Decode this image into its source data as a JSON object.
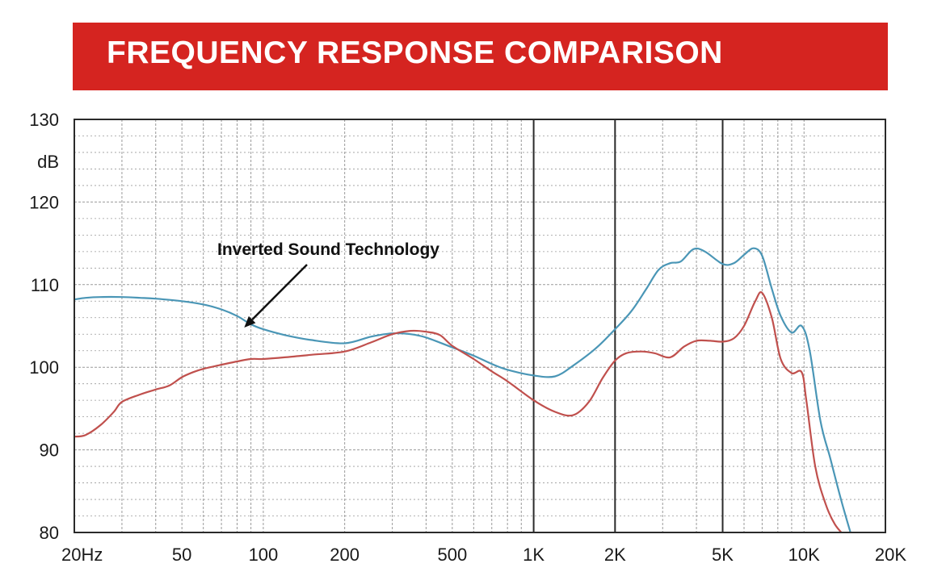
{
  "colors": {
    "banner": "#d52420",
    "blue": "#4a96b6",
    "red": "#c0504d",
    "grid": "#9a9a9a",
    "major": "#2a2a2a"
  },
  "chart_data": {
    "type": "line",
    "title": "FREQUENCY RESPONSE COMPARISON",
    "xscale": "log",
    "xlim": [
      20,
      20000
    ],
    "ylim": [
      80,
      130
    ],
    "ylabel": "dB",
    "xticks": [
      {
        "v": 20,
        "label": "20Hz"
      },
      {
        "v": 50,
        "label": "50"
      },
      {
        "v": 100,
        "label": "100"
      },
      {
        "v": 200,
        "label": "200"
      },
      {
        "v": 500,
        "label": "500"
      },
      {
        "v": 1000,
        "label": "1K"
      },
      {
        "v": 2000,
        "label": "2K"
      },
      {
        "v": 5000,
        "label": "5K"
      },
      {
        "v": 10000,
        "label": "10K"
      },
      {
        "v": 20000,
        "label": "20K"
      }
    ],
    "yticks": [
      {
        "v": 80,
        "label": "80"
      },
      {
        "v": 90,
        "label": "90"
      },
      {
        "v": 100,
        "label": "100"
      },
      {
        "v": 110,
        "label": "110"
      },
      {
        "v": 120,
        "label": "120"
      },
      {
        "v": 130,
        "label": "130"
      }
    ],
    "major_vlines": [
      1000,
      2000,
      5000
    ],
    "grid": true,
    "annotation": {
      "text": "Inverted Sound Technology",
      "x": 85,
      "y": 104.8
    },
    "series": [
      {
        "color": "blue",
        "x": [
          20,
          22,
          25,
          30,
          35,
          40,
          50,
          60,
          70,
          80,
          90,
          100,
          120,
          150,
          200,
          250,
          300,
          350,
          400,
          500,
          600,
          700,
          800,
          1000,
          1200,
          1400,
          1700,
          2000,
          2300,
          2600,
          2900,
          3200,
          3500,
          3900,
          4300,
          5000,
          5500,
          6000,
          6500,
          7000,
          7600,
          8200,
          9000,
          9800,
          10500,
          11500,
          12500,
          13700,
          15000
        ],
        "y": [
          108.2,
          108.4,
          108.5,
          108.5,
          108.4,
          108.3,
          108.0,
          107.6,
          107.0,
          106.2,
          105.2,
          104.6,
          103.9,
          103.3,
          102.9,
          103.7,
          104.1,
          104.0,
          103.6,
          102.4,
          101.4,
          100.4,
          99.7,
          99.0,
          98.9,
          100.2,
          102.3,
          104.6,
          106.8,
          109.4,
          111.8,
          112.6,
          112.8,
          114.3,
          114.0,
          112.5,
          112.6,
          113.6,
          114.4,
          113.5,
          109.5,
          106.2,
          104.2,
          105.0,
          102.0,
          93.5,
          89.0,
          84.0,
          79.5
        ]
      },
      {
        "color": "red",
        "x": [
          20,
          22,
          25,
          28,
          30,
          35,
          40,
          45,
          50,
          55,
          60,
          70,
          80,
          90,
          100,
          120,
          150,
          200,
          250,
          300,
          350,
          400,
          450,
          500,
          600,
          700,
          800,
          1000,
          1200,
          1400,
          1600,
          1800,
          2000,
          2200,
          2500,
          2800,
          3200,
          3600,
          4000,
          4500,
          5000,
          5500,
          6000,
          6600,
          7000,
          7600,
          8200,
          9000,
          9800,
          10200,
          11000,
          12000,
          13000,
          14200
        ],
        "y": [
          91.6,
          91.8,
          93.0,
          94.6,
          95.8,
          96.7,
          97.3,
          97.8,
          98.8,
          99.4,
          99.8,
          100.3,
          100.7,
          101.0,
          101.0,
          101.2,
          101.5,
          101.9,
          103.0,
          104.0,
          104.4,
          104.3,
          103.9,
          102.6,
          101.0,
          99.5,
          98.3,
          96.0,
          94.6,
          94.2,
          95.8,
          98.7,
          100.8,
          101.7,
          101.9,
          101.7,
          101.2,
          102.5,
          103.2,
          103.2,
          103.1,
          103.5,
          105.0,
          108.0,
          109.0,
          106.0,
          101.0,
          99.3,
          99.4,
          96.0,
          88.0,
          83.5,
          81.0,
          79.5
        ]
      }
    ]
  }
}
